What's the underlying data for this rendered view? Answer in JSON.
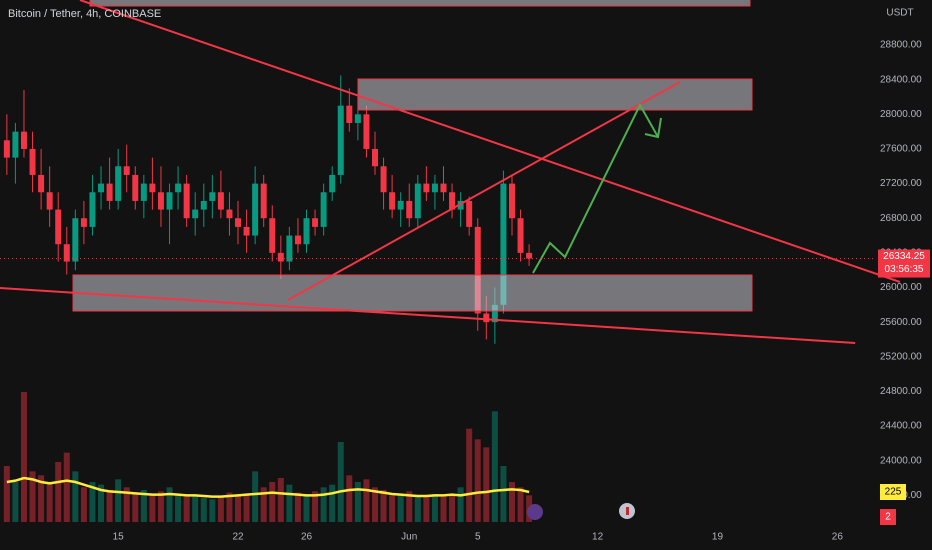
{
  "chart_data": {
    "type": "candlestick",
    "title": "Bitcoin / Tether, 4h, COINBASE",
    "currency": "USDT",
    "countdown": "03:56:35",
    "indicator_badge": "2",
    "up_color": "#089981",
    "down_color": "#f23645",
    "volume_ma_color": "#ffeb3b",
    "xlim": [
      8.1,
      59.2
    ],
    "ylim": [
      23200,
      29320
    ],
    "volume_ylim": [
      0,
      1050
    ],
    "xticks": [
      {
        "value": 15,
        "label": "15"
      },
      {
        "value": 22,
        "label": "22"
      },
      {
        "value": 26,
        "label": "26"
      },
      {
        "value": 32,
        "label": "Jun"
      },
      {
        "value": 36,
        "label": "5"
      },
      {
        "value": 43,
        "label": "12"
      },
      {
        "value": 50,
        "label": "19"
      },
      {
        "value": 57,
        "label": "26"
      }
    ],
    "yticks": [
      {
        "value": 28800,
        "label": "28800.00"
      },
      {
        "value": 28400,
        "label": "28400.00"
      },
      {
        "value": 28000,
        "label": "28000.00"
      },
      {
        "value": 27600,
        "label": "27600.00"
      },
      {
        "value": 27200,
        "label": "27200.00"
      },
      {
        "value": 26800,
        "label": "26800.00"
      },
      {
        "value": 26400,
        "label": "26400.00"
      },
      {
        "value": 26000,
        "label": "26000.00"
      },
      {
        "value": 25600,
        "label": "25600.00"
      },
      {
        "value": 25200,
        "label": "25200.00"
      },
      {
        "value": 24800,
        "label": "24800.00"
      },
      {
        "value": 24400,
        "label": "24400.00"
      },
      {
        "value": 24000,
        "label": "24000.00"
      },
      {
        "value": 23600,
        "label": "23600.00"
      }
    ],
    "x": [
      8.5,
      9,
      9.5,
      10,
      10.5,
      11,
      11.5,
      12,
      12.5,
      13,
      13.5,
      14,
      14.5,
      15,
      15.5,
      16,
      16.5,
      17,
      17.5,
      18,
      18.5,
      19,
      19.5,
      20,
      20.5,
      21,
      21.5,
      22,
      22.5,
      23,
      23.5,
      24,
      24.5,
      25,
      25.5,
      26,
      26.5,
      27,
      27.5,
      28,
      28.5,
      29,
      29.5,
      30,
      30.5,
      31,
      31.5,
      32,
      32.5,
      33,
      33.5,
      34,
      34.5,
      35,
      35.5,
      36,
      36.5,
      37,
      37.5,
      38,
      38.5,
      39
    ],
    "open": [
      27700,
      27500,
      27800,
      27600,
      27300,
      27100,
      26900,
      26500,
      26300,
      26800,
      26700,
      27100,
      27200,
      27000,
      27400,
      27300,
      27000,
      27200,
      27100,
      26900,
      27100,
      27200,
      26800,
      26900,
      27000,
      27100,
      26900,
      26800,
      26700,
      26600,
      27200,
      26800,
      26400,
      26300,
      26600,
      26500,
      26800,
      26700,
      27100,
      27300,
      28100,
      27900,
      28000,
      27600,
      27400,
      27100,
      26900,
      27000,
      26800,
      27200,
      27100,
      27200,
      27100,
      26900,
      27000,
      26700,
      25700,
      25600,
      25800,
      27200,
      26800,
      26400
    ],
    "high": [
      28000,
      27900,
      28280,
      27800,
      27600,
      27400,
      27100,
      26700,
      26900,
      27000,
      27300,
      27400,
      27500,
      27600,
      27650,
      27400,
      27300,
      27500,
      27400,
      27200,
      27400,
      27300,
      27100,
      27200,
      27300,
      27350,
      27100,
      27000,
      26900,
      27400,
      27300,
      26950,
      26600,
      26700,
      26800,
      26900,
      26900,
      27200,
      27400,
      28450,
      28300,
      28200,
      28100,
      27800,
      27500,
      27300,
      27100,
      27200,
      27300,
      27400,
      27300,
      27400,
      27200,
      27100,
      27050,
      26800,
      25900,
      26000,
      27350,
      27300,
      26900,
      26500
    ],
    "low": [
      27300,
      27200,
      27500,
      27100,
      26900,
      26700,
      26300,
      26150,
      26200,
      26500,
      26600,
      26900,
      26900,
      26900,
      27100,
      26900,
      26800,
      26900,
      26700,
      26500,
      26900,
      26700,
      26600,
      26700,
      26800,
      26800,
      26600,
      26500,
      26400,
      26500,
      26700,
      26300,
      26100,
      26200,
      26400,
      26400,
      26600,
      26600,
      27000,
      27200,
      27800,
      27700,
      27500,
      27300,
      26900,
      26800,
      26700,
      26700,
      26700,
      27000,
      26900,
      27000,
      26800,
      26700,
      26600,
      25500,
      25400,
      25350,
      25700,
      26600,
      26300,
      26250
    ],
    "close": [
      27500,
      27800,
      27600,
      27300,
      27100,
      26900,
      26500,
      26300,
      26800,
      26700,
      27100,
      27200,
      27000,
      27400,
      27300,
      27000,
      27200,
      27100,
      26900,
      27100,
      27200,
      26800,
      26900,
      27000,
      27100,
      26900,
      26800,
      26700,
      26600,
      27200,
      26800,
      26400,
      26300,
      26600,
      26500,
      26800,
      26700,
      27100,
      27300,
      28100,
      27900,
      28000,
      27600,
      27400,
      27100,
      26900,
      27000,
      26800,
      27200,
      27100,
      27200,
      27100,
      26900,
      27000,
      26700,
      25700,
      25600,
      25800,
      27200,
      26800,
      26400,
      26334.25
    ],
    "volume": [
      420,
      300,
      975,
      380,
      350,
      300,
      450,
      520,
      380,
      260,
      300,
      280,
      240,
      320,
      260,
      220,
      240,
      200,
      230,
      260,
      210,
      190,
      200,
      180,
      170,
      190,
      220,
      200,
      210,
      380,
      260,
      300,
      330,
      280,
      220,
      200,
      230,
      260,
      280,
      600,
      350,
      300,
      320,
      260,
      240,
      200,
      210,
      230,
      190,
      200,
      210,
      190,
      200,
      260,
      700,
      620,
      560,
      830,
      420,
      300,
      260,
      200
    ],
    "volume_ma": [
      300,
      310,
      330,
      320,
      300,
      290,
      300,
      310,
      300,
      280,
      260,
      240,
      230,
      225,
      220,
      215,
      210,
      205,
      205,
      210,
      205,
      200,
      200,
      195,
      190,
      190,
      195,
      200,
      205,
      210,
      215,
      220,
      215,
      210,
      205,
      200,
      200,
      205,
      215,
      230,
      240,
      245,
      240,
      230,
      220,
      210,
      205,
      200,
      195,
      195,
      200,
      200,
      205,
      200,
      210,
      220,
      225,
      235,
      240,
      245,
      240,
      225
    ]
  }
}
